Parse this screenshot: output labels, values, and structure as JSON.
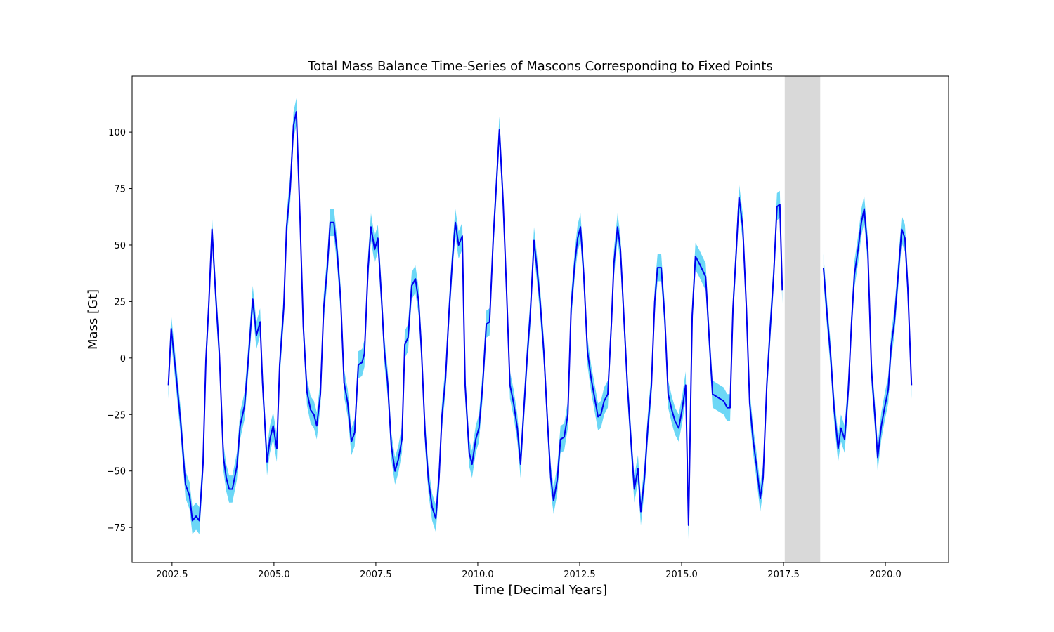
{
  "chart_data": {
    "type": "line",
    "title": "Total Mass Balance Time-Series of Mascons Corresponding to Fixed Points",
    "x_label": "Time [Decimal Years]",
    "y_label": "Mass [Gt]",
    "xlim": [
      2001.52,
      2021.55
    ],
    "ylim": [
      -90.5,
      124.9
    ],
    "xticks": [
      2002.5,
      {
        "value": 2005,
        "label": "2005.0"
      },
      2007.5,
      {
        "value": 2010,
        "label": "2010.0"
      },
      2012.5,
      {
        "value": 2015,
        "label": "2015.0"
      },
      2017.5,
      {
        "value": 2020,
        "label": "2020.0"
      }
    ],
    "yticks": [
      {
        "value": -75,
        "label": "−75"
      },
      {
        "value": -50,
        "label": "−50"
      },
      {
        "value": -25,
        "label": "−25"
      },
      0,
      25,
      50,
      75,
      100
    ],
    "shaded_span": [
      2017.53,
      2018.4
    ],
    "shaded_color": "#d9d9d9",
    "x": [
      2002.41,
      2002.48,
      2002.59,
      2002.71,
      2002.83,
      2002.93,
      2003.0,
      2003.09,
      2003.17,
      2003.26,
      2003.33,
      2003.4,
      2003.48,
      2003.57,
      2003.66,
      2003.76,
      2003.83,
      2003.9,
      2003.98,
      2004.09,
      2004.17,
      2004.28,
      2004.36,
      2004.48,
      2004.57,
      2004.66,
      2004.72,
      2004.83,
      2004.9,
      2004.98,
      2005.07,
      2005.14,
      2005.24,
      2005.31,
      2005.4,
      2005.48,
      2005.55,
      2005.64,
      2005.72,
      2005.81,
      2005.9,
      2005.98,
      2006.05,
      2006.14,
      2006.22,
      2006.31,
      2006.38,
      2006.47,
      2006.55,
      2006.64,
      2006.72,
      2006.81,
      2006.9,
      2006.98,
      2007.07,
      2007.16,
      2007.22,
      2007.31,
      2007.38,
      2007.47,
      2007.55,
      2007.64,
      2007.71,
      2007.79,
      2007.88,
      2007.97,
      2008.05,
      2008.14,
      2008.21,
      2008.29,
      2008.38,
      2008.47,
      2008.55,
      2008.62,
      2008.71,
      2008.79,
      2008.88,
      2008.97,
      2009.05,
      2009.12,
      2009.21,
      2009.29,
      2009.38,
      2009.45,
      2009.53,
      2009.62,
      2009.69,
      2009.79,
      2009.86,
      2009.95,
      2010.03,
      2010.12,
      2010.21,
      2010.29,
      2010.38,
      2010.47,
      2010.53,
      2010.62,
      2010.71,
      2010.79,
      2010.88,
      2010.97,
      2011.05,
      2011.12,
      2011.21,
      2011.29,
      2011.38,
      2011.45,
      2011.53,
      2011.62,
      2011.71,
      2011.79,
      2011.86,
      2011.95,
      2012.03,
      2012.12,
      2012.21,
      2012.29,
      2012.38,
      2012.45,
      2012.52,
      2012.6,
      2012.69,
      2012.78,
      2012.86,
      2012.95,
      2013.02,
      2013.1,
      2013.19,
      2013.28,
      2013.34,
      2013.43,
      2013.5,
      2013.59,
      2013.67,
      2013.76,
      2013.84,
      2013.93,
      2014.0,
      2014.09,
      2014.17,
      2014.26,
      2014.34,
      2014.41,
      2014.5,
      2014.59,
      2014.67,
      2014.76,
      2014.84,
      2014.93,
      2015.02,
      2015.1,
      2015.17,
      2015.26,
      2015.34,
      2015.43,
      2015.59,
      2015.67,
      2015.76,
      2016.03,
      2016.12,
      2016.19,
      2016.26,
      2016.34,
      2016.41,
      2016.5,
      2016.59,
      2016.67,
      2016.76,
      2016.84,
      2016.93,
      2017.0,
      2017.09,
      2017.17,
      2017.26,
      2017.34,
      2017.41,
      2017.47,
      2017.9,
      2018.48,
      2018.57,
      2018.66,
      2018.74,
      2018.84,
      2018.91,
      2019.0,
      2019.09,
      2019.17,
      2019.24,
      2019.33,
      2019.41,
      2019.48,
      2019.57,
      2019.66,
      2019.74,
      2019.81,
      2019.9,
      2019.98,
      2020.07,
      2020.14,
      2020.22,
      2020.31,
      2020.4,
      2020.48,
      2020.55,
      2020.64
    ],
    "series": [
      {
        "color": "#0000ee",
        "band_color": "#6cd7f6",
        "uncertainty": 6,
        "values": [
          -12,
          13,
          -6,
          -28,
          -56,
          -61,
          -72,
          -70,
          -72,
          -47,
          -1,
          23,
          57,
          28,
          2,
          -44,
          -53,
          -58,
          -58,
          -48,
          -30,
          -21,
          -3,
          26,
          10,
          16,
          -11,
          -46,
          -36,
          -30,
          -40,
          -3,
          22,
          58,
          75,
          103,
          109,
          62,
          14,
          -15,
          -23,
          -25,
          -30,
          -16,
          22,
          40,
          60,
          60,
          47,
          25,
          -11,
          -20,
          -37,
          -33,
          -3,
          -2,
          2,
          40,
          58,
          48,
          53,
          26,
          3,
          -11,
          -39,
          -50,
          -45,
          -36,
          6,
          9,
          32,
          35,
          25,
          3,
          -34,
          -54,
          -66,
          -71,
          -53,
          -26,
          -9,
          19,
          44,
          60,
          50,
          54,
          -12,
          -42,
          -47,
          -36,
          -31,
          -12,
          15,
          16,
          53,
          81,
          101,
          70,
          28,
          -12,
          -20,
          -31,
          -47,
          -26,
          0,
          20,
          52,
          40,
          25,
          3,
          -28,
          -53,
          -63,
          -54,
          -36,
          -35,
          -25,
          22,
          42,
          53,
          58,
          37,
          3,
          -9,
          -17,
          -26,
          -25,
          -19,
          -16,
          16,
          42,
          58,
          48,
          16,
          -12,
          -37,
          -58,
          -49,
          -68,
          -53,
          -31,
          -12,
          25,
          40,
          40,
          17,
          -16,
          -23,
          -28,
          -31,
          -22,
          -12,
          -74,
          19,
          45,
          42,
          36,
          11,
          -16,
          -19,
          -22,
          -22,
          22,
          47,
          71,
          58,
          22,
          -20,
          -37,
          -48,
          -62,
          -53,
          -12,
          12,
          37,
          67,
          68,
          30,
          null,
          40,
          19,
          0,
          -22,
          -40,
          -31,
          -36,
          -14,
          16,
          37,
          48,
          60,
          66,
          47,
          -6,
          -25,
          -44,
          -30,
          -22,
          -14,
          5,
          16,
          36,
          57,
          53,
          31,
          -12
        ]
      }
    ]
  }
}
